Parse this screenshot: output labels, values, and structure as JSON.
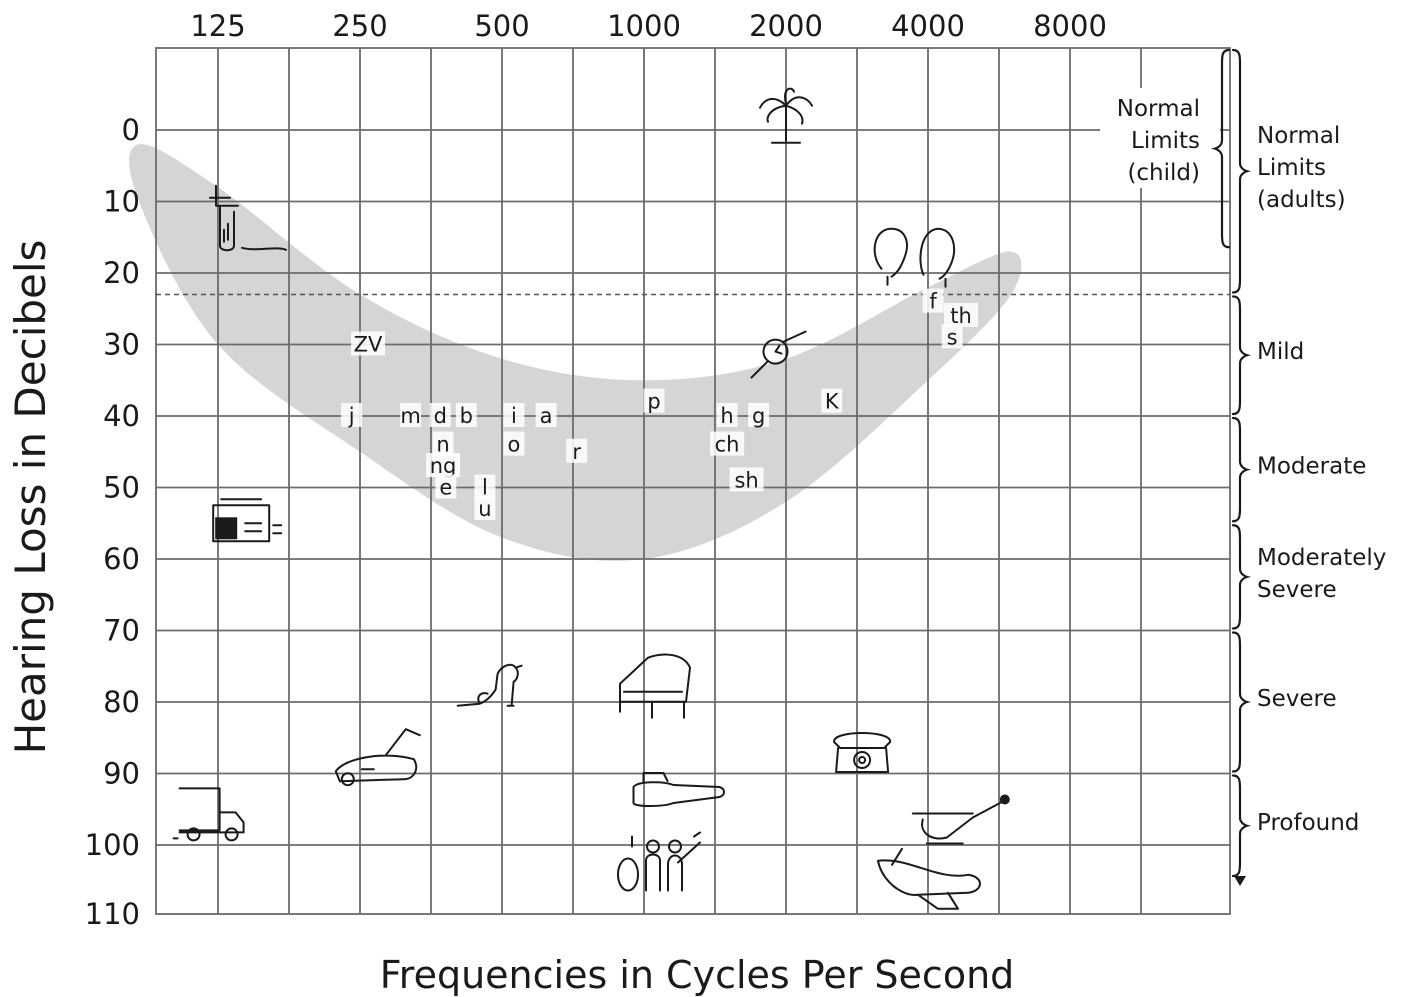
{
  "chart_data": {
    "type": "scatter",
    "title": "",
    "xlabel": "Frequencies in Cycles Per Second",
    "ylabel": "Hearing Loss in Decibels",
    "x_scale": "log2",
    "x_ticks": [
      125,
      250,
      500,
      1000,
      2000,
      4000,
      8000
    ],
    "y_ticks": [
      0,
      10,
      20,
      30,
      40,
      50,
      60,
      70,
      80,
      90,
      100,
      110
    ],
    "ylim": [
      -11,
      110
    ],
    "y_inverted": true,
    "grid": true,
    "threshold_line_db": 23,
    "speech_banana": {
      "color": "#d4d5d6",
      "upper_edge": [
        [
          85,
          2
        ],
        [
          125,
          8
        ],
        [
          250,
          23
        ],
        [
          500,
          32
        ],
        [
          1000,
          35
        ],
        [
          2000,
          32
        ],
        [
          4000,
          22
        ],
        [
          6000,
          17
        ]
      ],
      "lower_edge": [
        [
          6000,
          23
        ],
        [
          4000,
          35
        ],
        [
          2000,
          52
        ],
        [
          1000,
          60
        ],
        [
          500,
          57
        ],
        [
          250,
          45
        ],
        [
          125,
          30
        ],
        [
          85,
          10
        ]
      ]
    },
    "phonemes": [
      {
        "label": "ZV",
        "freq": 260,
        "db": 30
      },
      {
        "label": "j",
        "freq": 240,
        "db": 40
      },
      {
        "label": "m",
        "freq": 320,
        "db": 40
      },
      {
        "label": "d",
        "freq": 370,
        "db": 40
      },
      {
        "label": "b",
        "freq": 420,
        "db": 40
      },
      {
        "label": "n",
        "freq": 375,
        "db": 44
      },
      {
        "label": "ng",
        "freq": 375,
        "db": 47
      },
      {
        "label": "e",
        "freq": 380,
        "db": 50
      },
      {
        "label": "l",
        "freq": 460,
        "db": 50
      },
      {
        "label": "u",
        "freq": 460,
        "db": 53
      },
      {
        "label": "i",
        "freq": 530,
        "db": 40
      },
      {
        "label": "o",
        "freq": 530,
        "db": 44
      },
      {
        "label": "a",
        "freq": 620,
        "db": 40
      },
      {
        "label": "r",
        "freq": 720,
        "db": 45
      },
      {
        "label": "p",
        "freq": 1050,
        "db": 38
      },
      {
        "label": "h",
        "freq": 1500,
        "db": 40
      },
      {
        "label": "g",
        "freq": 1750,
        "db": 40
      },
      {
        "label": "ch",
        "freq": 1500,
        "db": 44
      },
      {
        "label": "sh",
        "freq": 1650,
        "db": 49
      },
      {
        "label": "K",
        "freq": 2500,
        "db": 38
      },
      {
        "label": "f",
        "freq": 4100,
        "db": 24
      },
      {
        "label": "th",
        "freq": 4700,
        "db": 26
      },
      {
        "label": "s",
        "freq": 4500,
        "db": 29
      }
    ],
    "sound_icons": [
      {
        "icon": "leaves-rustling-icon",
        "freq": 2000,
        "db": -2
      },
      {
        "icon": "dripping-faucet-icon",
        "freq": 130,
        "db": 12
      },
      {
        "icon": "whispering-heads-icon",
        "freq": 3800,
        "db": 18
      },
      {
        "icon": "ticking-watch-icon",
        "freq": 1900,
        "db": 31
      },
      {
        "icon": "refrigerator-hum-icon",
        "freq": 140,
        "db": 55
      },
      {
        "icon": "barking-dog-icon",
        "freq": 480,
        "db": 78
      },
      {
        "icon": "piano-icon",
        "freq": 1050,
        "db": 78
      },
      {
        "icon": "lawn-mower-icon",
        "freq": 270,
        "db": 88
      },
      {
        "icon": "telephone-ring-icon",
        "freq": 2900,
        "db": 87
      },
      {
        "icon": "truck-icon",
        "freq": 120,
        "db": 96
      },
      {
        "icon": "chainsaw-icon",
        "freq": 1100,
        "db": 93
      },
      {
        "icon": "rock-band-icon",
        "freq": 1050,
        "db": 103
      },
      {
        "icon": "helicopter-icon",
        "freq": 4300,
        "db": 97
      },
      {
        "icon": "airplane-icon",
        "freq": 4000,
        "db": 105
      }
    ],
    "categories_adult": [
      {
        "label_lines": [
          "Normal",
          "Limits",
          "(adults)"
        ],
        "from": -11,
        "to": 23
      },
      {
        "label_lines": [
          "Mild"
        ],
        "from": 23,
        "to": 40
      },
      {
        "label_lines": [
          "Moderate"
        ],
        "from": 40,
        "to": 55
      },
      {
        "label_lines": [
          "Moderately",
          "Severe"
        ],
        "from": 55,
        "to": 70
      },
      {
        "label_lines": [
          "Severe"
        ],
        "from": 70,
        "to": 90
      },
      {
        "label_lines": [
          "Profound"
        ],
        "from": 90,
        "to": 110
      }
    ],
    "category_child": {
      "label_lines": [
        "Normal",
        "Limits",
        "(child)"
      ],
      "from": -11,
      "to": 15
    }
  }
}
